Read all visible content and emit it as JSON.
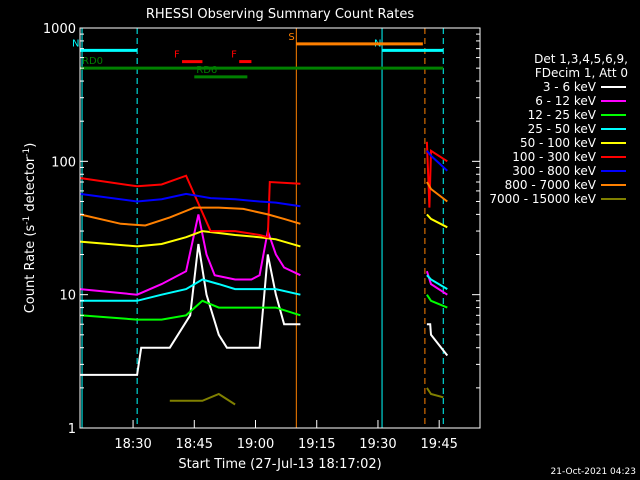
{
  "chart_data": {
    "type": "line",
    "title": "RHESSI Observing Summary Count Rates",
    "xlabel": "Start Time (27-Jul-13 18:17:02)",
    "ylabel_main": "Count Rate (s",
    "ylabel_sup1": "-1",
    "ylabel_mid": " detector",
    "ylabel_sup2": "-1",
    "ylabel_end": ")",
    "yscale": "log",
    "ylim": [
      1,
      1000
    ],
    "xlim_min": [
      0,
      64
    ],
    "x_unit": "minutes after 18:17:02",
    "y_ticks": [
      {
        "value": 1,
        "label": "1"
      },
      {
        "value": 10,
        "label": "10"
      },
      {
        "value": 100,
        "label": "100"
      },
      {
        "value": 1000,
        "label": "1000"
      }
    ],
    "x_ticks": [
      {
        "value": 13,
        "label": "18:30"
      },
      {
        "value": 28,
        "label": "18:45"
      },
      {
        "value": 43,
        "label": "19:00"
      },
      {
        "value": 58,
        "label": "19:15"
      },
      {
        "value": 73,
        "label": "19:30"
      },
      {
        "value": 88,
        "label": "19:45"
      }
    ],
    "legend_header": [
      "Det 1,3,4,5,6,9,",
      "FDecim 1, Att 0"
    ],
    "series": [
      {
        "name": "3 - 6 keV",
        "color": "#ffffff",
        "points": [
          [
            0,
            2.5
          ],
          [
            14,
            2.5
          ],
          [
            15,
            4
          ],
          [
            22,
            4
          ],
          [
            27,
            7
          ],
          [
            29,
            24
          ],
          [
            31,
            10
          ],
          [
            34,
            5
          ],
          [
            36,
            4
          ],
          [
            42,
            4
          ],
          [
            44,
            4
          ],
          [
            46,
            20
          ],
          [
            48,
            10
          ],
          [
            50,
            6
          ],
          [
            52,
            6
          ],
          [
            54,
            6
          ],
          [
            85,
            6
          ],
          [
            85.8,
            6
          ],
          [
            86,
            5
          ],
          [
            90,
            3.5
          ]
        ]
      },
      {
        "name": "6 - 12 keV",
        "color": "#ff00ff",
        "points": [
          [
            0,
            11
          ],
          [
            14,
            10
          ],
          [
            20,
            12
          ],
          [
            26,
            15
          ],
          [
            29,
            40
          ],
          [
            31,
            20
          ],
          [
            33,
            14
          ],
          [
            38,
            13
          ],
          [
            42,
            13
          ],
          [
            44,
            14
          ],
          [
            46,
            30
          ],
          [
            48,
            20
          ],
          [
            50,
            16
          ],
          [
            54,
            14
          ],
          [
            85,
            15
          ],
          [
            86,
            12
          ],
          [
            90,
            10
          ]
        ]
      },
      {
        "name": "12 - 25 keV",
        "color": "#00ff00",
        "points": [
          [
            0,
            7
          ],
          [
            14,
            6.5
          ],
          [
            20,
            6.5
          ],
          [
            26,
            7
          ],
          [
            30,
            9
          ],
          [
            34,
            8
          ],
          [
            38,
            8
          ],
          [
            44,
            8
          ],
          [
            48,
            8
          ],
          [
            54,
            7
          ],
          [
            85,
            10
          ],
          [
            86,
            9
          ],
          [
            90,
            8
          ]
        ]
      },
      {
        "name": "25 - 50 keV",
        "color": "#00ffff",
        "points": [
          [
            0,
            9
          ],
          [
            14,
            9
          ],
          [
            20,
            10
          ],
          [
            26,
            11
          ],
          [
            30,
            13
          ],
          [
            34,
            12
          ],
          [
            38,
            11
          ],
          [
            44,
            11
          ],
          [
            48,
            11
          ],
          [
            54,
            10
          ],
          [
            85,
            14
          ],
          [
            86,
            13
          ],
          [
            90,
            11
          ]
        ]
      },
      {
        "name": "50 - 100 keV",
        "color": "#ffff00",
        "points": [
          [
            0,
            25
          ],
          [
            14,
            23
          ],
          [
            20,
            24
          ],
          [
            26,
            27
          ],
          [
            30,
            30
          ],
          [
            34,
            29
          ],
          [
            38,
            28
          ],
          [
            44,
            27
          ],
          [
            48,
            26
          ],
          [
            54,
            23
          ],
          [
            85,
            40
          ],
          [
            86,
            37
          ],
          [
            90,
            32
          ]
        ]
      },
      {
        "name": "100 - 300 keV",
        "color": "#ff0000",
        "points": [
          [
            0,
            75
          ],
          [
            14,
            65
          ],
          [
            20,
            67
          ],
          [
            26,
            78
          ],
          [
            32,
            30
          ],
          [
            38,
            30
          ],
          [
            44,
            28
          ],
          [
            46,
            27
          ],
          [
            46.5,
            70
          ],
          [
            54,
            68
          ],
          [
            85,
            140
          ],
          [
            85.6,
            45
          ],
          [
            86,
            120
          ],
          [
            90,
            100
          ]
        ]
      },
      {
        "name": "300 - 800 keV",
        "color": "#0000ff",
        "points": [
          [
            0,
            57
          ],
          [
            14,
            50
          ],
          [
            20,
            52
          ],
          [
            26,
            57
          ],
          [
            32,
            53
          ],
          [
            38,
            52
          ],
          [
            44,
            50
          ],
          [
            48,
            49
          ],
          [
            54,
            46
          ],
          [
            85,
            120
          ],
          [
            86,
            110
          ],
          [
            90,
            85
          ]
        ]
      },
      {
        "name": "800 - 7000 keV",
        "color": "#ff8000",
        "points": [
          [
            0,
            40
          ],
          [
            10,
            34
          ],
          [
            16,
            33
          ],
          [
            22,
            38
          ],
          [
            28,
            45
          ],
          [
            34,
            45
          ],
          [
            40,
            44
          ],
          [
            46,
            40
          ],
          [
            50,
            37
          ],
          [
            54,
            34
          ],
          [
            85,
            70
          ],
          [
            86,
            62
          ],
          [
            90,
            50
          ]
        ]
      },
      {
        "name": "7000 - 15000 keV",
        "color": "#808000",
        "points": [
          [
            22,
            1.6
          ],
          [
            30,
            1.6
          ],
          [
            34,
            1.8
          ],
          [
            38,
            1.5
          ],
          [
            85,
            2
          ],
          [
            86,
            1.8
          ],
          [
            89,
            1.7
          ]
        ]
      }
    ],
    "annotations": [
      {
        "label": "N",
        "color": "#00ffff",
        "x_start": 0,
        "x_end": 14,
        "level": 680
      },
      {
        "label": "N",
        "color": "#00ffff",
        "x_start": 74,
        "x_end": 89,
        "level": 680
      },
      {
        "label": "S",
        "color": "#ff8000",
        "x_start": 53,
        "x_end": 84,
        "level": 760
      },
      {
        "label": "F",
        "color": "#ff0000",
        "x_start": 25,
        "x_end": 30,
        "level": 560
      },
      {
        "label": "F",
        "color": "#ff0000",
        "x_start": 39,
        "x_end": 42,
        "level": 560
      },
      {
        "label": "RD0",
        "color": "#008000",
        "x_start": 0,
        "x_end": 89,
        "level": 500
      },
      {
        "label": "RD6",
        "color": "#008000",
        "x_start": 28,
        "x_end": 41,
        "level": 430
      }
    ],
    "vlines": [
      {
        "x": 0.5,
        "color": "#00ffff",
        "dash": false
      },
      {
        "x": 14,
        "color": "#00ffff",
        "dash": true
      },
      {
        "x": 53,
        "color": "#ff8000",
        "dash": false
      },
      {
        "x": 74,
        "color": "#00ffff",
        "dash": false
      },
      {
        "x": 84.5,
        "color": "#ff8000",
        "dash": true
      },
      {
        "x": 89,
        "color": "#00ffff",
        "dash": true
      }
    ]
  },
  "footer": {
    "date": "21-Oct-2021 04:23"
  }
}
